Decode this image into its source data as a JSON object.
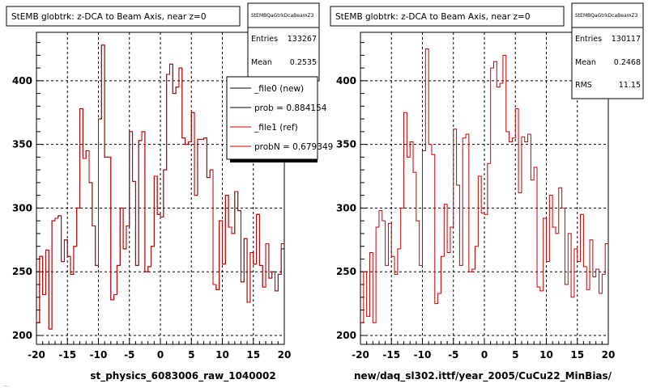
{
  "footer_fragment": "...",
  "chart_data": [
    {
      "type": "line",
      "style": "step-histogram",
      "title": "StEMB globtrk: z-DCA to Beam Axis, near z=0",
      "xlabel": "st_physics_6083006_raw_1040002",
      "ylabel": "",
      "xlim": [
        -20,
        20
      ],
      "ylim": [
        193,
        438
      ],
      "xticks": [
        -20,
        -15,
        -10,
        -5,
        0,
        5,
        10,
        15,
        20
      ],
      "yticks": [
        200,
        250,
        300,
        350,
        400
      ],
      "grid": true,
      "stats": {
        "name": "StEMBQaGtrkDcaBeamZ3",
        "rows": [
          {
            "label": "Entries",
            "value": "133267"
          },
          {
            "label": "Mean",
            "value": "0.2535"
          }
        ]
      },
      "legend": {
        "position": "top-right",
        "entries": [
          {
            "label": "_file0 (new)",
            "color": "#000000"
          },
          {
            "label": "prob = 0.884154",
            "color": "#000000"
          },
          {
            "label": "_file1 (ref)",
            "color": "#cc0000"
          },
          {
            "label": "probN = 0.679349",
            "color": "#cc0000"
          }
        ]
      },
      "bin_width": 0.5,
      "series": [
        {
          "name": "_file0 (new)",
          "color": "#000000",
          "values": [
            210,
            262,
            232,
            267,
            205,
            290,
            292,
            294,
            258,
            275,
            262,
            248,
            270,
            300,
            378,
            339,
            345,
            320,
            286,
            255,
            370,
            428,
            340,
            340,
            228,
            232,
            255,
            300,
            268,
            286,
            360,
            321,
            255,
            353,
            360,
            250,
            254,
            270,
            325,
            295,
            293,
            330,
            405,
            413,
            390,
            395,
            410,
            355,
            350,
            352,
            375,
            310,
            354,
            354,
            355,
            324,
            330,
            240,
            236,
            290,
            256,
            310,
            285,
            280,
            313,
            298,
            242,
            276,
            226,
            265,
            256,
            295,
            255,
            238,
            272,
            245,
            250,
            235,
            248,
            268
          ]
        },
        {
          "name": "_file1 (ref)",
          "color": "#cc0000",
          "values": [
            210,
            262,
            232,
            267,
            205,
            290,
            292,
            294,
            258,
            275,
            262,
            248,
            270,
            300,
            378,
            339,
            345,
            320,
            286,
            255,
            370,
            428,
            340,
            340,
            228,
            232,
            255,
            300,
            268,
            286,
            360,
            321,
            255,
            353,
            360,
            250,
            254,
            270,
            325,
            295,
            293,
            330,
            405,
            413,
            390,
            395,
            410,
            355,
            350,
            352,
            375,
            310,
            354,
            354,
            355,
            324,
            330,
            240,
            236,
            290,
            256,
            310,
            285,
            280,
            313,
            298,
            242,
            276,
            226,
            265,
            256,
            295,
            255,
            238,
            272,
            245,
            250,
            235,
            248,
            272
          ]
        }
      ]
    },
    {
      "type": "line",
      "style": "step-histogram",
      "title": "StEMB globtrk: z-DCA to Beam Axis, near z=0",
      "xlabel": "new/daq_sl302.ittf/year_2005/CuCu22_MinBias/",
      "ylabel": "",
      "xlim": [
        -20,
        20
      ],
      "ylim": [
        193,
        438
      ],
      "xticks": [
        -20,
        -15,
        -10,
        -5,
        0,
        5,
        10,
        15,
        20
      ],
      "yticks": [
        200,
        250,
        300,
        350,
        400
      ],
      "grid": true,
      "stats": {
        "name": "StEMBQaGtrkDcaBeamZ3",
        "rows": [
          {
            "label": "Entries",
            "value": "130117"
          },
          {
            "label": "Mean",
            "value": "0.2468"
          },
          {
            "label": "RMS",
            "value": "11.15"
          }
        ]
      },
      "bin_width": 0.5,
      "series": [
        {
          "name": "",
          "color": "#cc0000",
          "values": [
            210,
            250,
            215,
            265,
            210,
            285,
            298,
            290,
            255,
            288,
            262,
            248,
            268,
            300,
            375,
            340,
            352,
            328,
            290,
            255,
            345,
            425,
            350,
            342,
            225,
            233,
            262,
            303,
            265,
            285,
            362,
            318,
            255,
            355,
            358,
            250,
            252,
            270,
            325,
            296,
            295,
            335,
            410,
            415,
            395,
            398,
            420,
            360,
            352,
            355,
            378,
            312,
            356,
            352,
            358,
            322,
            332,
            238,
            235,
            292,
            258,
            310,
            285,
            280,
            316,
            300,
            240,
            280,
            230,
            268,
            258,
            295,
            254,
            236,
            275,
            246,
            252,
            233,
            248,
            272
          ]
        }
      ]
    }
  ]
}
